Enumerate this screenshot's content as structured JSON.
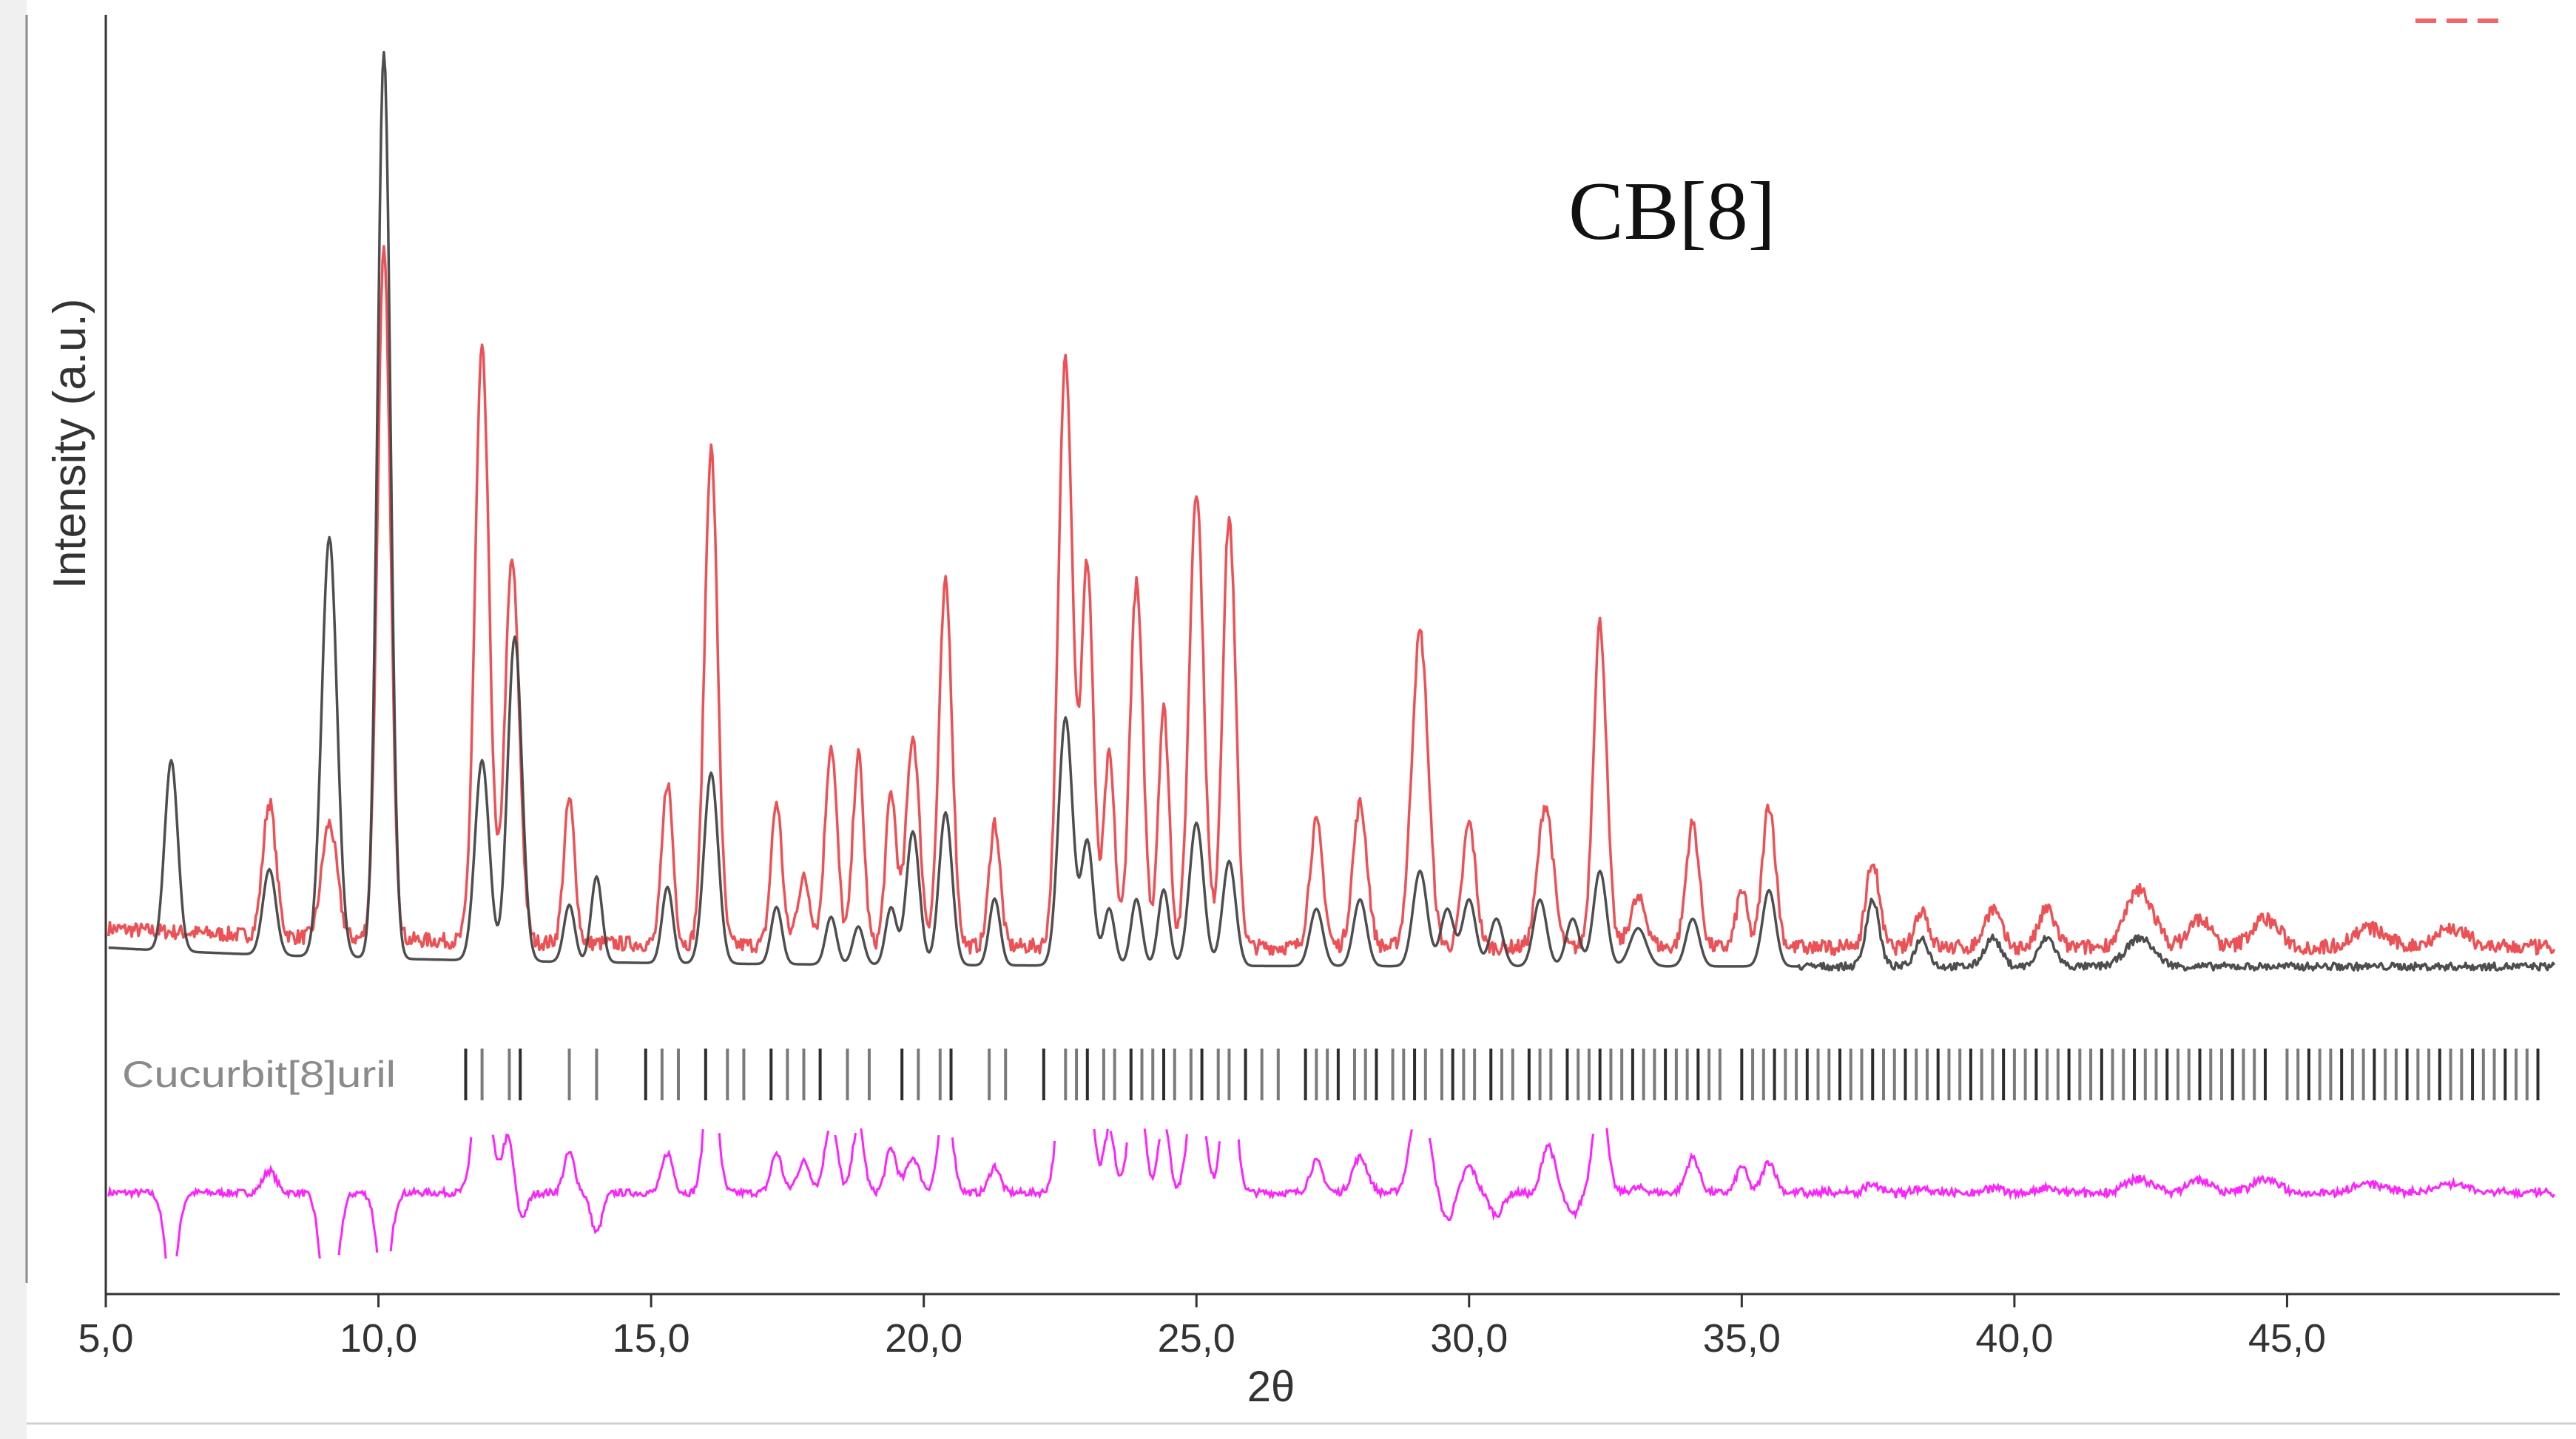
{
  "chart_data": {
    "type": "line",
    "title": "",
    "annotation": "CB[8]",
    "xlabel": "2θ",
    "ylabel": "Intensity (a.u.)",
    "xlim": [
      5.0,
      50.0
    ],
    "ylim": [
      0,
      100
    ],
    "xticks": [
      "5,0",
      "10,0",
      "15,0",
      "20,0",
      "25,0",
      "30,0",
      "35,0",
      "40,0",
      "45,0"
    ],
    "xtick_values": [
      5,
      10,
      15,
      20,
      25,
      30,
      35,
      40,
      45
    ],
    "phase_label": "Cucurbit[8]uril",
    "colors": {
      "observed": "#e8262b",
      "calculated": "#444444",
      "difference": "#ff22ff",
      "reflections": "#222222",
      "axis": "#333333"
    },
    "series": [
      {
        "key": "observed",
        "baseline": 3,
        "peaks": [
          [
            8.0,
            14,
            0.12
          ],
          [
            9.1,
            12,
            0.14
          ],
          [
            10.1,
            72,
            0.12
          ],
          [
            11.9,
            62,
            0.13
          ],
          [
            12.45,
            40,
            0.13
          ],
          [
            13.5,
            15,
            0.1
          ],
          [
            15.3,
            17,
            0.1
          ],
          [
            16.1,
            52,
            0.12
          ],
          [
            17.3,
            15,
            0.1
          ],
          [
            17.8,
            7,
            0.12
          ],
          [
            18.3,
            21,
            0.11
          ],
          [
            18.8,
            20,
            0.1
          ],
          [
            19.4,
            16,
            0.1
          ],
          [
            19.8,
            22,
            0.12
          ],
          [
            20.4,
            38,
            0.12
          ],
          [
            21.3,
            13,
            0.1
          ],
          [
            22.6,
            62,
            0.13
          ],
          [
            23.0,
            40,
            0.11
          ],
          [
            23.4,
            20,
            0.1
          ],
          [
            23.9,
            38,
            0.12
          ],
          [
            24.4,
            25,
            0.1
          ],
          [
            25.0,
            48,
            0.13
          ],
          [
            25.6,
            45,
            0.12
          ],
          [
            27.2,
            13,
            0.12
          ],
          [
            28.0,
            15,
            0.13
          ],
          [
            29.1,
            33,
            0.15
          ],
          [
            30.0,
            13,
            0.12
          ],
          [
            31.4,
            15,
            0.14
          ],
          [
            32.4,
            34,
            0.12
          ],
          [
            33.1,
            5,
            0.15
          ],
          [
            34.1,
            13,
            0.12
          ],
          [
            35.0,
            6,
            0.1
          ],
          [
            35.5,
            15,
            0.12
          ],
          [
            37.4,
            9,
            0.12
          ],
          [
            38.3,
            4,
            0.12
          ],
          [
            39.6,
            4,
            0.15
          ],
          [
            40.6,
            4,
            0.15
          ],
          [
            42.3,
            6,
            0.25
          ],
          [
            43.4,
            3,
            0.2
          ],
          [
            44.6,
            3,
            0.25
          ],
          [
            46.5,
            2,
            0.3
          ],
          [
            48.0,
            2,
            0.3
          ]
        ]
      },
      {
        "key": "calculated",
        "baseline": 1,
        "peaks": [
          [
            6.2,
            20,
            0.12
          ],
          [
            8.0,
            9,
            0.12
          ],
          [
            9.1,
            44,
            0.14
          ],
          [
            10.1,
            95,
            0.12
          ],
          [
            11.9,
            21,
            0.13
          ],
          [
            12.5,
            34,
            0.13
          ],
          [
            13.5,
            6,
            0.1
          ],
          [
            14.0,
            9,
            0.1
          ],
          [
            15.3,
            8,
            0.1
          ],
          [
            16.1,
            20,
            0.13
          ],
          [
            17.3,
            6,
            0.1
          ],
          [
            18.3,
            5,
            0.1
          ],
          [
            18.8,
            4,
            0.1
          ],
          [
            19.4,
            6,
            0.1
          ],
          [
            19.8,
            14,
            0.12
          ],
          [
            20.4,
            16,
            0.12
          ],
          [
            21.3,
            7,
            0.1
          ],
          [
            22.6,
            26,
            0.13
          ],
          [
            23.0,
            13,
            0.11
          ],
          [
            23.4,
            6,
            0.1
          ],
          [
            23.9,
            7,
            0.1
          ],
          [
            24.4,
            8,
            0.1
          ],
          [
            25.0,
            15,
            0.13
          ],
          [
            25.6,
            11,
            0.12
          ],
          [
            27.2,
            6,
            0.12
          ],
          [
            28.0,
            7,
            0.12
          ],
          [
            29.1,
            10,
            0.13
          ],
          [
            29.6,
            6,
            0.12
          ],
          [
            30.0,
            7,
            0.12
          ],
          [
            30.5,
            5,
            0.12
          ],
          [
            31.3,
            7,
            0.12
          ],
          [
            31.9,
            5,
            0.12
          ],
          [
            32.4,
            10,
            0.12
          ],
          [
            33.1,
            4,
            0.15
          ],
          [
            34.1,
            5,
            0.12
          ],
          [
            35.5,
            8,
            0.12
          ],
          [
            37.4,
            7,
            0.12
          ],
          [
            38.3,
            3,
            0.12
          ],
          [
            39.6,
            3,
            0.15
          ],
          [
            40.6,
            3,
            0.15
          ],
          [
            42.3,
            3,
            0.25
          ]
        ]
      }
    ],
    "reflections": [
      11.6,
      11.9,
      12.4,
      12.6,
      13.5,
      14.0,
      14.9,
      15.2,
      15.5,
      16.0,
      16.4,
      16.7,
      17.2,
      17.5,
      17.8,
      18.1,
      18.6,
      19.0,
      19.6,
      19.9,
      20.3,
      20.5,
      21.2,
      21.5,
      22.2,
      22.6,
      22.8,
      23.0,
      23.3,
      23.5,
      23.8,
      24.0,
      24.2,
      24.4,
      24.6,
      24.9,
      25.1,
      25.4,
      25.6,
      25.9,
      26.2,
      26.5,
      27.0,
      27.2,
      27.4,
      27.6,
      27.9,
      28.1,
      28.3,
      28.6,
      28.8,
      29.0,
      29.2,
      29.5,
      29.7,
      29.9,
      30.1,
      30.4,
      30.6,
      30.8,
      31.1,
      31.3,
      31.5,
      31.8,
      32.0,
      32.2,
      32.4,
      32.6,
      32.8,
      33.0,
      33.2,
      33.4,
      33.6,
      33.8,
      34.0,
      34.2,
      34.4,
      34.6,
      35.0,
      35.2,
      35.4,
      35.6,
      35.8,
      36.0,
      36.2,
      36.4,
      36.6,
      36.8,
      37.0,
      37.2,
      37.4,
      37.6,
      37.8,
      38.0,
      38.2,
      38.4,
      38.6,
      38.8,
      39.0,
      39.2,
      39.4,
      39.6,
      39.8,
      40.0,
      40.2,
      40.4,
      40.6,
      40.8,
      41.0,
      41.2,
      41.4,
      41.6,
      41.8,
      42.0,
      42.2,
      42.4,
      42.6,
      42.8,
      43.0,
      43.2,
      43.4,
      43.6,
      43.8,
      44.0,
      44.2,
      44.4,
      44.6,
      45.0,
      45.2,
      45.4,
      45.6,
      45.8,
      46.0,
      46.2,
      46.4,
      46.6,
      46.8,
      47.0,
      47.2,
      47.4,
      47.6,
      47.8,
      48.0,
      48.2,
      48.4,
      48.6,
      48.8,
      49.0,
      49.2,
      49.4,
      49.6
    ]
  }
}
